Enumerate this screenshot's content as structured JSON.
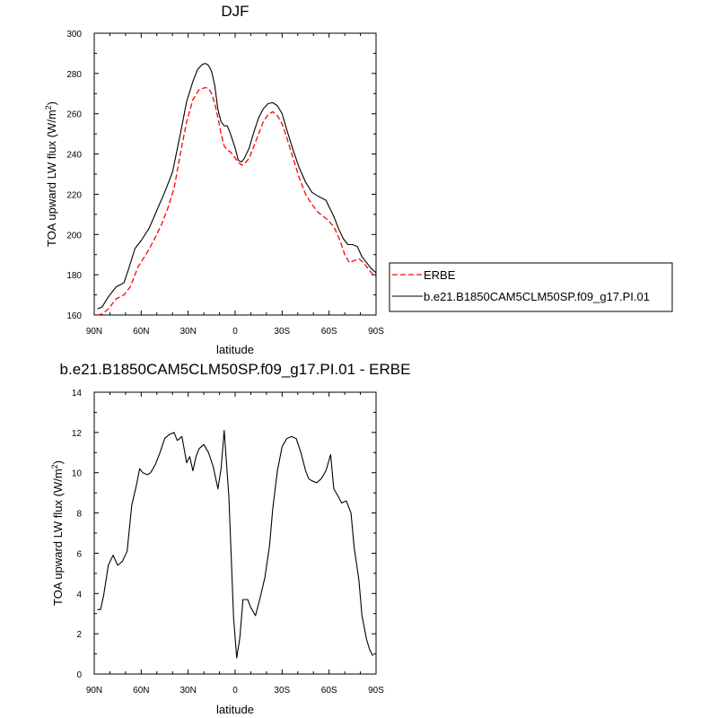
{
  "chart_data": [
    {
      "type": "line",
      "title": "DJF",
      "xlabel": "latitude",
      "ylabel": "TOA upward LW flux (W/m",
      "ylabel_sup": "2",
      "ylabel_close": ")",
      "xlim": [
        90,
        -90
      ],
      "ylim": [
        160,
        300
      ],
      "xticks": [
        90,
        60,
        30,
        0,
        -30,
        -60,
        -90
      ],
      "xtick_labels": [
        "90N",
        "60N",
        "30N",
        "0",
        "30S",
        "60S",
        "90S"
      ],
      "yticks": [
        160,
        180,
        200,
        220,
        240,
        260,
        280,
        300
      ],
      "ytick_labels": [
        "160",
        "180",
        "200",
        "220",
        "240",
        "260",
        "280",
        "300"
      ],
      "legend": {
        "position": "right",
        "entries": [
          "ERBE",
          "b.e21.B1850CAM5CLM50SP.f09_g17.PI.01"
        ]
      },
      "series": [
        {
          "name": "ERBE",
          "color": "#ff0000",
          "dash": "dashed",
          "x": [
            88,
            85,
            81,
            76,
            71,
            67,
            62,
            57,
            52,
            47,
            43,
            39,
            35,
            31,
            27,
            23,
            19,
            17,
            15,
            13,
            11,
            9,
            7,
            5,
            3,
            0,
            -2,
            -4,
            -6,
            -9,
            -12,
            -15,
            -18,
            -21,
            -24,
            -27,
            -30,
            -33,
            -37,
            -41,
            -45,
            -49,
            -53,
            -58,
            -63,
            -67,
            -70,
            -73,
            -76,
            -79,
            -82,
            -85,
            -88,
            -90
          ],
          "y": [
            160,
            160.5,
            163,
            168,
            170,
            174,
            184,
            190,
            197,
            205,
            213,
            223,
            240,
            256,
            267,
            272,
            273,
            272.5,
            270,
            265,
            258,
            250,
            244,
            242,
            241,
            238,
            236,
            234.5,
            235,
            238,
            244,
            250,
            256,
            259.5,
            261,
            259,
            255,
            248,
            238,
            228,
            220,
            215,
            211,
            208,
            204,
            197,
            190,
            186,
            187,
            188,
            186,
            183,
            180,
            179
          ]
        },
        {
          "name": "b.e21.B1850CAM5CLM50SP.f09_g17.PI.01",
          "color": "#000000",
          "dash": "solid",
          "x": [
            88,
            85,
            81,
            76,
            71,
            68,
            64,
            60,
            55,
            50,
            45,
            40,
            35,
            31,
            27,
            24,
            21,
            19,
            17,
            15,
            13,
            11,
            9,
            7,
            5,
            3,
            0,
            -2,
            -4,
            -6,
            -9,
            -12,
            -15,
            -18,
            -21,
            -24,
            -27,
            -30,
            -33,
            -37,
            -41,
            -45,
            -49,
            -53,
            -58,
            -63,
            -66,
            -69,
            -72,
            -75,
            -78,
            -81,
            -84,
            -87,
            -90
          ],
          "y": [
            163,
            164,
            169,
            174,
            176,
            183,
            193,
            197,
            203,
            212,
            221,
            231,
            250,
            266,
            276,
            282,
            284.5,
            285,
            284,
            281,
            274,
            262,
            256,
            254,
            254,
            250,
            243,
            237,
            236,
            238,
            243,
            251,
            258,
            262.5,
            265,
            265.5,
            264,
            260,
            252,
            242,
            233,
            226,
            221,
            219,
            217,
            209,
            203,
            198,
            195,
            195,
            194,
            189,
            186,
            183,
            181
          ]
        }
      ]
    },
    {
      "type": "line",
      "title": "b.e21.B1850CAM5CLM50SP.f09_g17.PI.01 - ERBE",
      "xlabel": "latitude",
      "ylabel": "TOA upward LW flux (W/m",
      "ylabel_sup": "2",
      "ylabel_close": ")",
      "xlim": [
        90,
        -90
      ],
      "ylim": [
        0,
        14
      ],
      "xticks": [
        90,
        60,
        30,
        0,
        -30,
        -60,
        -90
      ],
      "xtick_labels": [
        "90N",
        "60N",
        "30N",
        "0",
        "30S",
        "60S",
        "90S"
      ],
      "yticks": [
        0,
        2,
        4,
        6,
        8,
        10,
        12,
        14
      ],
      "ytick_labels": [
        "0",
        "2",
        "4",
        "6",
        "8",
        "10",
        "12",
        "14"
      ],
      "series": [
        {
          "name": "b.e21.B1850CAM5CLM50SP.f09_g17.PI.01 - ERBE",
          "color": "#000000",
          "dash": "solid",
          "x": [
            88,
            86,
            84,
            81,
            78,
            75,
            72,
            69,
            66,
            63,
            61,
            59,
            56,
            54,
            51,
            48,
            45,
            42,
            39,
            37,
            34,
            31,
            29,
            27,
            25,
            23,
            20,
            17,
            14,
            11,
            9,
            7,
            4,
            1,
            -1,
            -3,
            -5,
            -8,
            -10,
            -13,
            -16,
            -19,
            -22,
            -24,
            -27,
            -30,
            -33,
            -36,
            -39,
            -42,
            -45,
            -47,
            -49,
            -52,
            -55,
            -58,
            -61,
            -63,
            -66,
            -68,
            -71,
            -74,
            -76,
            -79,
            -81,
            -84,
            -86,
            -88
          ],
          "y": [
            3.2,
            3.2,
            3.9,
            5.4,
            5.9,
            5.4,
            5.6,
            6.1,
            8.4,
            9.4,
            10.2,
            10.0,
            9.9,
            10.0,
            10.4,
            11.0,
            11.7,
            11.9,
            12.0,
            11.6,
            11.8,
            10.5,
            10.8,
            10.1,
            10.8,
            11.2,
            11.4,
            11.0,
            10.3,
            9.2,
            10.2,
            12.1,
            8.8,
            2.8,
            0.8,
            1.8,
            3.7,
            3.7,
            3.3,
            2.9,
            3.8,
            4.8,
            6.4,
            8.2,
            10.1,
            11.3,
            11.7,
            11.8,
            11.7,
            11.0,
            10.1,
            9.7,
            9.6,
            9.5,
            9.7,
            10.1,
            10.9,
            9.2,
            8.8,
            8.5,
            8.6,
            8.0,
            6.3,
            4.7,
            2.9,
            1.7,
            1.2,
            0.9
          ]
        }
      ]
    }
  ]
}
